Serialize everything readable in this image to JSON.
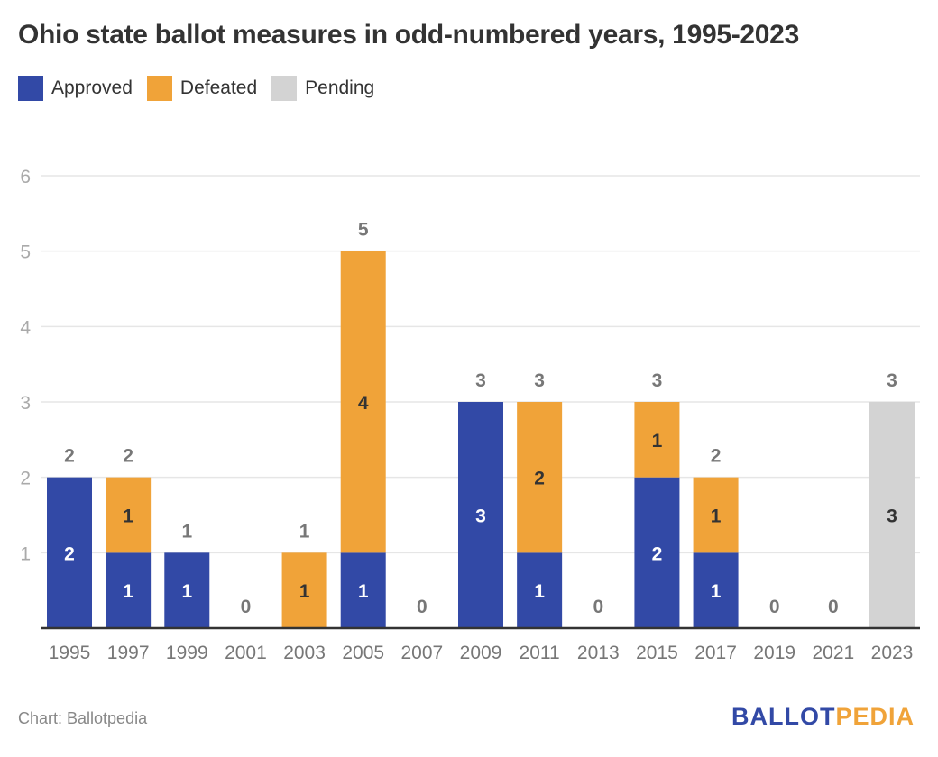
{
  "chart_data": {
    "type": "bar",
    "stacked": true,
    "title": "Ohio state ballot measures in odd-numbered years, 1995-2023",
    "xlabel": "",
    "ylabel": "",
    "ylim": [
      0,
      6
    ],
    "yticks": [
      1,
      2,
      3,
      4,
      5,
      6
    ],
    "grid": true,
    "legend_position": "top-left",
    "categories": [
      "1995",
      "1997",
      "1999",
      "2001",
      "2003",
      "2005",
      "2007",
      "2009",
      "2011",
      "2013",
      "2015",
      "2017",
      "2019",
      "2021",
      "2023"
    ],
    "series": [
      {
        "name": "Approved",
        "color": "#3249a6",
        "label_color": "#ffffff",
        "values": [
          2,
          1,
          1,
          0,
          0,
          1,
          0,
          3,
          1,
          0,
          2,
          1,
          0,
          0,
          0
        ]
      },
      {
        "name": "Defeated",
        "color": "#f0a339",
        "label_color": "#333333",
        "values": [
          0,
          1,
          0,
          0,
          1,
          4,
          0,
          0,
          2,
          0,
          1,
          1,
          0,
          0,
          0
        ]
      },
      {
        "name": "Pending",
        "color": "#d3d3d3",
        "label_color": "#333333",
        "values": [
          0,
          0,
          0,
          0,
          0,
          0,
          0,
          0,
          0,
          0,
          0,
          0,
          0,
          0,
          3
        ]
      }
    ],
    "totals": [
      2,
      2,
      1,
      0,
      1,
      5,
      0,
      3,
      3,
      0,
      3,
      2,
      0,
      0,
      3
    ]
  },
  "legend": [
    {
      "label": "Approved",
      "color": "#3249a6"
    },
    {
      "label": "Defeated",
      "color": "#f0a339"
    },
    {
      "label": "Pending",
      "color": "#d3d3d3"
    }
  ],
  "footer": {
    "source": "Chart: Ballotpedia",
    "logo_part1": "BALLOT",
    "logo_part2": "PEDIA",
    "logo_color1": "#3249a6",
    "logo_color2": "#f0a339"
  }
}
